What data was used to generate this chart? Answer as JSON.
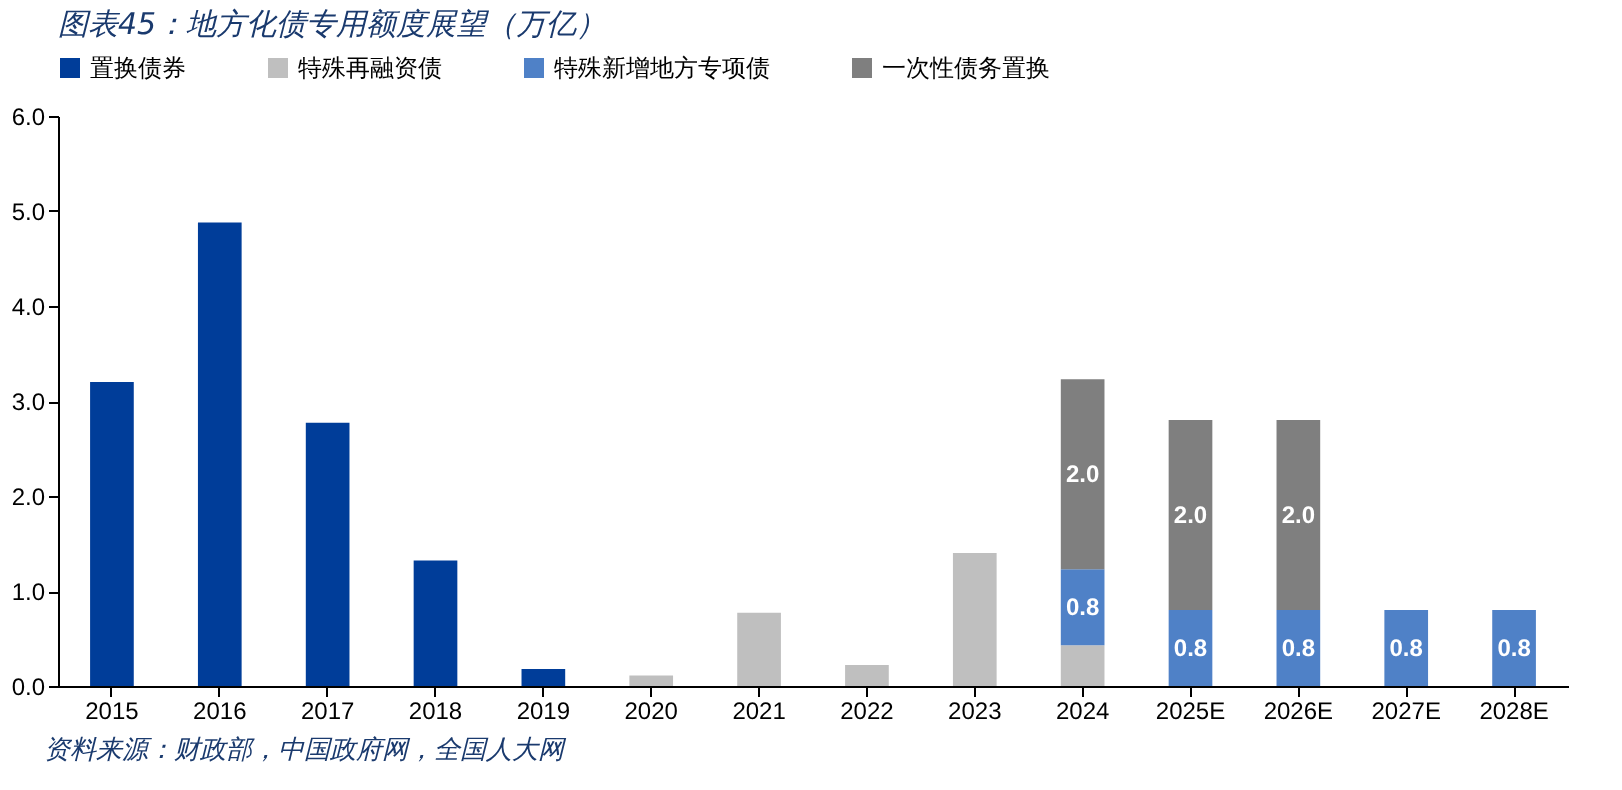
{
  "chart_data": {
    "type": "bar",
    "title": "图表45：地方化债专用额度展望（万亿）",
    "stacked": true,
    "legend": "top",
    "grid": false,
    "categories": [
      "2015",
      "2016",
      "2017",
      "2018",
      "2019",
      "2020",
      "2021",
      "2022",
      "2023",
      "2024",
      "2025E",
      "2026E",
      "2027E",
      "2028E"
    ],
    "ylim": [
      0,
      6
    ],
    "yticks": [
      {
        "value": 0,
        "label": "0.0"
      },
      {
        "value": 1,
        "label": "1.0"
      },
      {
        "value": 2,
        "label": "2.0"
      },
      {
        "value": 3,
        "label": "3.0"
      },
      {
        "value": 4,
        "label": "4.0"
      },
      {
        "value": 5,
        "label": "5.0"
      },
      {
        "value": 6,
        "label": "6.0"
      }
    ],
    "series": [
      {
        "name": "置换债券",
        "color": "#003d99",
        "values": [
          3.2,
          4.88,
          2.77,
          1.32,
          0.18,
          null,
          null,
          null,
          null,
          null,
          null,
          null,
          null,
          null
        ]
      },
      {
        "name": "特殊再融资债",
        "color": "#bfbfbf",
        "values": [
          null,
          null,
          null,
          null,
          null,
          0.11,
          0.77,
          0.22,
          1.4,
          0.43,
          null,
          null,
          null,
          null
        ]
      },
      {
        "name": "特殊新增地方专项债",
        "color": "#4f81c7",
        "values": [
          null,
          null,
          null,
          null,
          null,
          null,
          null,
          null,
          null,
          0.8,
          0.8,
          0.8,
          0.8,
          0.8
        ],
        "value_labels": [
          null,
          null,
          null,
          null,
          null,
          null,
          null,
          null,
          null,
          "0.8",
          "0.8",
          "0.8",
          "0.8",
          "0.8"
        ]
      },
      {
        "name": "一次性债务置换",
        "color": "#7f7f7f",
        "values": [
          null,
          null,
          null,
          null,
          null,
          null,
          null,
          null,
          null,
          2.0,
          2.0,
          2.0,
          null,
          null
        ],
        "value_labels": [
          null,
          null,
          null,
          null,
          null,
          null,
          null,
          null,
          null,
          "2.0",
          "2.0",
          "2.0",
          null,
          null
        ]
      }
    ],
    "annotations": [
      "资料来源：财政部，中国政府网，全国人大网"
    ]
  }
}
